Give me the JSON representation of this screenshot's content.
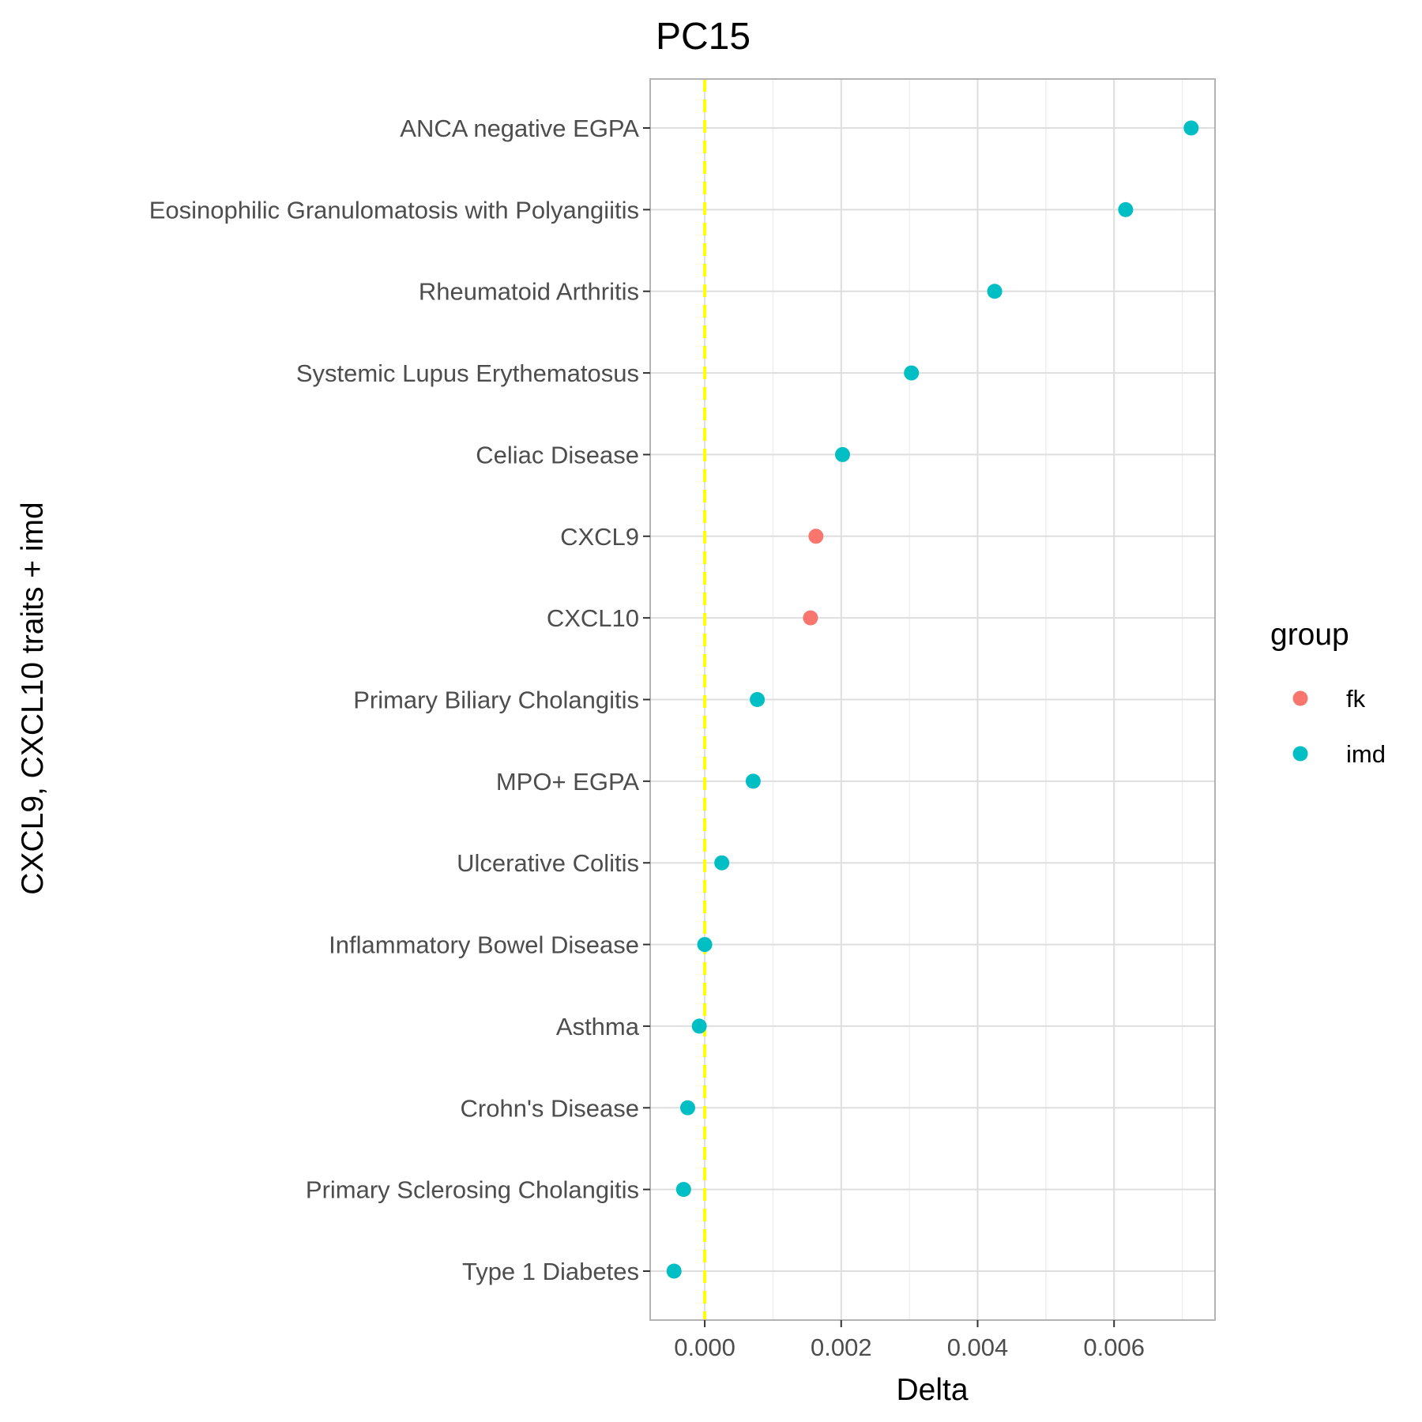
{
  "chart_data": {
    "type": "scatter",
    "title": "PC15",
    "xlabel": "Delta",
    "ylabel": "CXCL9, CXCL10 traits + imd",
    "xlim": [
      -0.0008,
      0.00748
    ],
    "x_ticks": [
      0.0,
      0.002,
      0.004,
      0.006
    ],
    "x_tick_labels": [
      "0.000",
      "0.002",
      "0.004",
      "0.006"
    ],
    "reference_line": {
      "x": 0,
      "color": "#ffff00",
      "style": "dashed"
    },
    "grid": true,
    "legend": {
      "title": "group",
      "position": "right",
      "entries": [
        {
          "label": "fk",
          "color": "#F8766D"
        },
        {
          "label": "imd",
          "color": "#00BFC4"
        }
      ]
    },
    "categories": [
      "ANCA negative EGPA",
      "Eosinophilic Granulomatosis with Polyangiitis",
      "Rheumatoid Arthritis",
      "Systemic Lupus Erythematosus",
      "Celiac Disease",
      "CXCL9",
      "CXCL10",
      "Primary Biliary Cholangitis",
      "MPO+ EGPA",
      "Ulcerative Colitis",
      "Inflammatory Bowel Disease",
      "Asthma",
      "Crohn's Disease",
      "Primary Sclerosing Cholangitis",
      "Type 1 Diabetes"
    ],
    "points": [
      {
        "label": "ANCA negative EGPA",
        "x": 0.00713,
        "group": "imd"
      },
      {
        "label": "Eosinophilic Granulomatosis with Polyangiitis",
        "x": 0.00617,
        "group": "imd"
      },
      {
        "label": "Rheumatoid Arthritis",
        "x": 0.00425,
        "group": "imd"
      },
      {
        "label": "Systemic Lupus Erythematosus",
        "x": 0.00303,
        "group": "imd"
      },
      {
        "label": "Celiac Disease",
        "x": 0.00202,
        "group": "imd"
      },
      {
        "label": "CXCL9",
        "x": 0.00163,
        "group": "fk"
      },
      {
        "label": "CXCL10",
        "x": 0.00155,
        "group": "fk"
      },
      {
        "label": "Primary Biliary Cholangitis",
        "x": 0.00077,
        "group": "imd"
      },
      {
        "label": "MPO+ EGPA",
        "x": 0.00071,
        "group": "imd"
      },
      {
        "label": "Ulcerative Colitis",
        "x": 0.00025,
        "group": "imd"
      },
      {
        "label": "Inflammatory Bowel Disease",
        "x": 0.0,
        "group": "imd"
      },
      {
        "label": "Asthma",
        "x": -8e-05,
        "group": "imd"
      },
      {
        "label": "Crohn's Disease",
        "x": -0.00025,
        "group": "imd"
      },
      {
        "label": "Primary Sclerosing Cholangitis",
        "x": -0.00031,
        "group": "imd"
      },
      {
        "label": "Type 1 Diabetes",
        "x": -0.00045,
        "group": "imd"
      }
    ]
  }
}
